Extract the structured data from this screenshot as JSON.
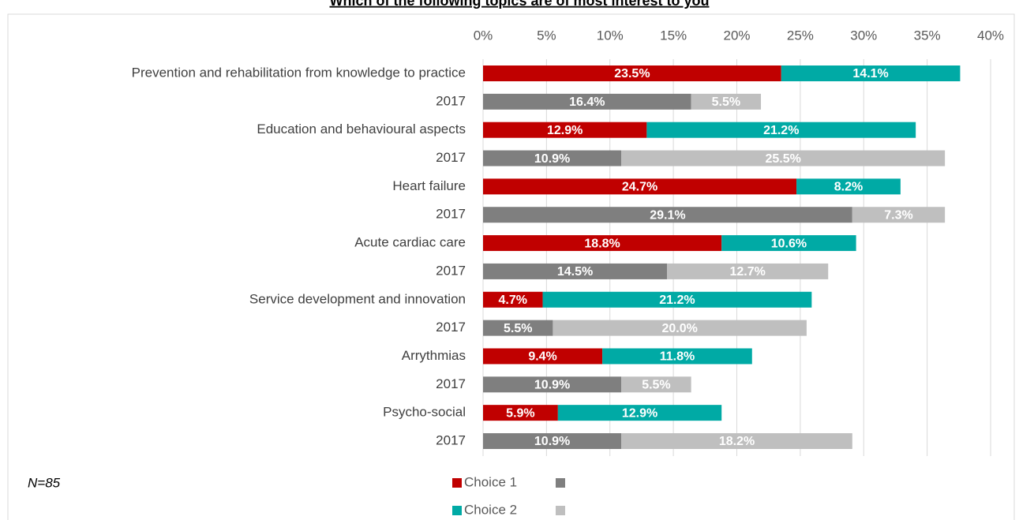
{
  "chart_data": {
    "type": "stacked-barh",
    "title": "Which of the following topics are of most interest to you",
    "categories": [
      "Prevention and rehabilitation from knowledge to practice",
      "2017",
      "Education and behavioural aspects",
      "2017",
      "Heart failure",
      "2017",
      "Acute cardiac care",
      "2017",
      "Service development and innovation",
      "2017",
      "Arrythmias",
      "2017",
      "Psycho-social",
      "2017"
    ],
    "series": [
      {
        "name": "Choice 1",
        "colors": [
          "#c00000",
          "#7f7f7f",
          "#c00000",
          "#7f7f7f",
          "#c00000",
          "#7f7f7f",
          "#c00000",
          "#7f7f7f",
          "#c00000",
          "#7f7f7f",
          "#c00000",
          "#7f7f7f",
          "#c00000",
          "#7f7f7f"
        ],
        "values": [
          23.5,
          16.4,
          12.9,
          10.9,
          24.7,
          29.1,
          18.8,
          14.5,
          4.7,
          5.5,
          9.4,
          10.9,
          5.9,
          10.9
        ],
        "value_labels": [
          "23.5%",
          "16.4%",
          "12.9%",
          "10.9%",
          "24.7%",
          "29.1%",
          "18.8%",
          "14.5%",
          "4.7%",
          "5.5%",
          "9.4%",
          "10.9%",
          "5.9%",
          "10.9%"
        ]
      },
      {
        "name": "Choice 2",
        "colors": [
          "#00aaa5",
          "#bfbfbf",
          "#00aaa5",
          "#bfbfbf",
          "#00aaa5",
          "#bfbfbf",
          "#00aaa5",
          "#bfbfbf",
          "#00aaa5",
          "#bfbfbf",
          "#00aaa5",
          "#bfbfbf",
          "#00aaa5",
          "#bfbfbf"
        ],
        "values": [
          14.1,
          5.5,
          21.2,
          25.5,
          8.2,
          7.3,
          10.6,
          12.7,
          21.2,
          20.0,
          11.8,
          5.5,
          12.9,
          18.2
        ],
        "value_labels": [
          "14.1%",
          "5.5%",
          "21.2%",
          "25.5%",
          "8.2%",
          "7.3%",
          "10.6%",
          "12.7%",
          "21.2%",
          "20.0%",
          "11.8%",
          "5.5%",
          "12.9%",
          "18.2%"
        ]
      }
    ],
    "xlim": [
      0,
      40
    ],
    "xticks": [
      {
        "value": 0,
        "label": "0%"
      },
      {
        "value": 5,
        "label": "5%"
      },
      {
        "value": 10,
        "label": "10%"
      },
      {
        "value": 15,
        "label": "15%"
      },
      {
        "value": 20,
        "label": "20%"
      },
      {
        "value": 25,
        "label": "25%"
      },
      {
        "value": 30,
        "label": "30%"
      },
      {
        "value": 35,
        "label": "35%"
      },
      {
        "value": 40,
        "label": "40%"
      }
    ],
    "grid": true,
    "note": "N=85"
  }
}
